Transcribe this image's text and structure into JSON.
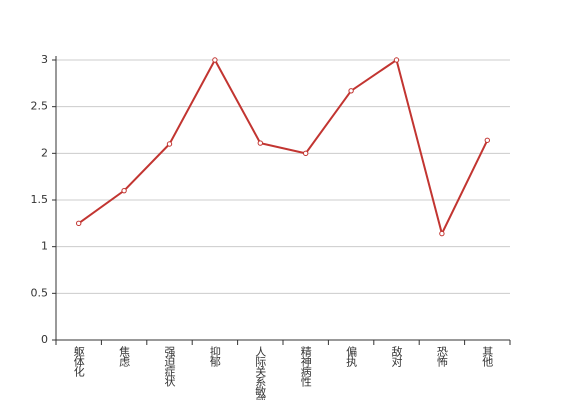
{
  "chart_data": {
    "type": "line",
    "categories": [
      "躯体化",
      "焦虑",
      "强迫症状",
      "抑郁",
      "人际关系敏感",
      "精神病性",
      "偏执",
      "敌对",
      "恐怖",
      "其他"
    ],
    "series": [
      {
        "color": "#c23531",
        "values": [
          1.25,
          1.6,
          2.1,
          3.0,
          2.11,
          2.0,
          2.67,
          3.0,
          1.14,
          2.14
        ]
      }
    ],
    "ylim": [
      0,
      3
    ],
    "yticks": [
      0,
      0.5,
      1,
      1.5,
      2,
      2.5,
      3
    ],
    "grid": true
  }
}
